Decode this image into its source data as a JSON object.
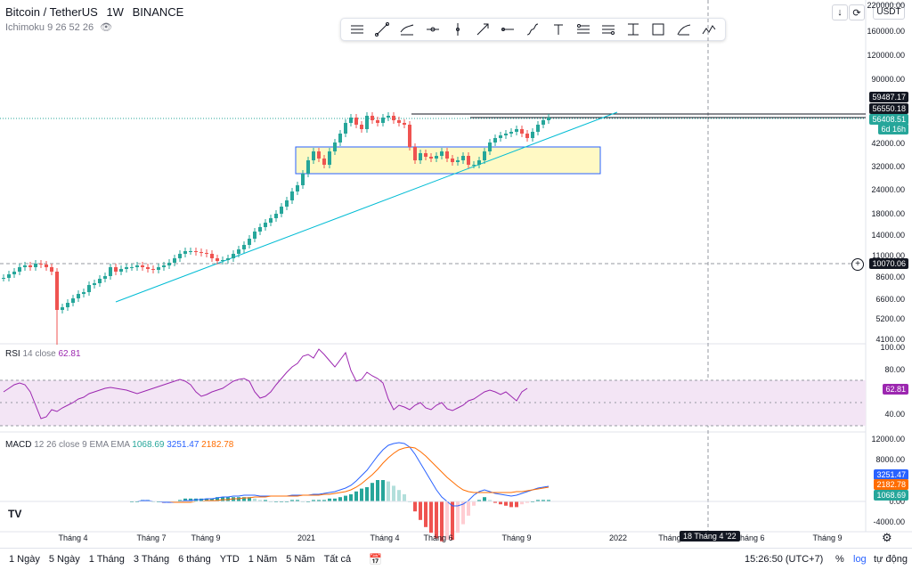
{
  "symbol": {
    "name": "Bitcoin / TetherUS",
    "interval": "1W",
    "exchange": "BINANCE",
    "quote": "USDT"
  },
  "indicator_ichimoku": "Ichimoku 9 26 52 26",
  "drawing_tools": [
    "horizontal-lines",
    "trend-line",
    "parallel-channel",
    "horizontal-ray",
    "vertical-line",
    "arrow",
    "horizontal-line",
    "path",
    "text",
    "fib",
    "fib-ext",
    "anchored",
    "rectangle",
    "brush",
    "elliott-wave"
  ],
  "top_buttons": {
    "down_arrow": "↓",
    "refresh": "⟳"
  },
  "main_price_axis": [
    {
      "label": "220000.00",
      "y": 6
    },
    {
      "label": "160000.00",
      "y": 35
    },
    {
      "label": "120000.00",
      "y": 62
    },
    {
      "label": "90000.00",
      "y": 89
    },
    {
      "label": "42000.00",
      "y": 161
    },
    {
      "label": "32000.00",
      "y": 187
    },
    {
      "label": "24000.00",
      "y": 213
    },
    {
      "label": "18000.00",
      "y": 240
    },
    {
      "label": "14000.00",
      "y": 264
    },
    {
      "label": "11000.00",
      "y": 287
    },
    {
      "label": "8600.00",
      "y": 311
    },
    {
      "label": "6600.00",
      "y": 336
    },
    {
      "label": "5200.00",
      "y": 358
    },
    {
      "label": "4100.00",
      "y": 381
    }
  ],
  "price_badges": {
    "high_line": "59487.17",
    "line2": "56550.18",
    "last_price": "56408.51",
    "countdown": "6d 16h",
    "crosshair": "10070.06"
  },
  "rsi": {
    "label": "RSI",
    "params": "14 close",
    "value": "62.81",
    "axis": [
      {
        "label": "100.00",
        "y": 390
      },
      {
        "label": "80.00",
        "y": 415
      },
      {
        "label": "40.00",
        "y": 465
      }
    ],
    "color": "#9c27b0"
  },
  "macd": {
    "label": "MACD",
    "params": "12 26 close 9 EMA EMA",
    "hist_value": "1068.69",
    "macd_value": "3251.47",
    "signal_value": "2182.78",
    "axis": [
      {
        "label": "12000.00",
        "y": 493
      },
      {
        "label": "8000.00",
        "y": 516
      },
      {
        "label": "0.00",
        "y": 563
      },
      {
        "label": "-4000.00",
        "y": 586
      }
    ],
    "colors": {
      "macd": "#2962ff",
      "signal": "#ff6d00",
      "hist_up": "#26a69a",
      "hist_down": "#ef5350"
    }
  },
  "time_axis": [
    {
      "label": "Tháng 4",
      "x": 82
    },
    {
      "label": "Tháng 7",
      "x": 170
    },
    {
      "label": "Tháng 9",
      "x": 231
    },
    {
      "label": "2021",
      "x": 344
    },
    {
      "label": "Tháng 4",
      "x": 432
    },
    {
      "label": "Tháng 6",
      "x": 492
    },
    {
      "label": "Tháng 9",
      "x": 580
    },
    {
      "label": "2022",
      "x": 694
    },
    {
      "label": "Tháng",
      "x": 752
    },
    {
      "label": "Tháng 6",
      "x": 842
    },
    {
      "label": "Tháng 9",
      "x": 929
    }
  ],
  "crosshair_date": "18 Tháng 4 '22",
  "timeframes": [
    "1 Ngày",
    "5 Ngày",
    "1 Tháng",
    "3 Tháng",
    "6 tháng",
    "YTD",
    "1 Năm",
    "5 Năm",
    "Tất cả"
  ],
  "clock": "15:26:50 (UTC+7)",
  "scale_options": {
    "percent": "%",
    "log": "log",
    "auto": "tự động"
  },
  "candle_colors": {
    "up": "#26a69a",
    "down": "#ef5350"
  }
}
